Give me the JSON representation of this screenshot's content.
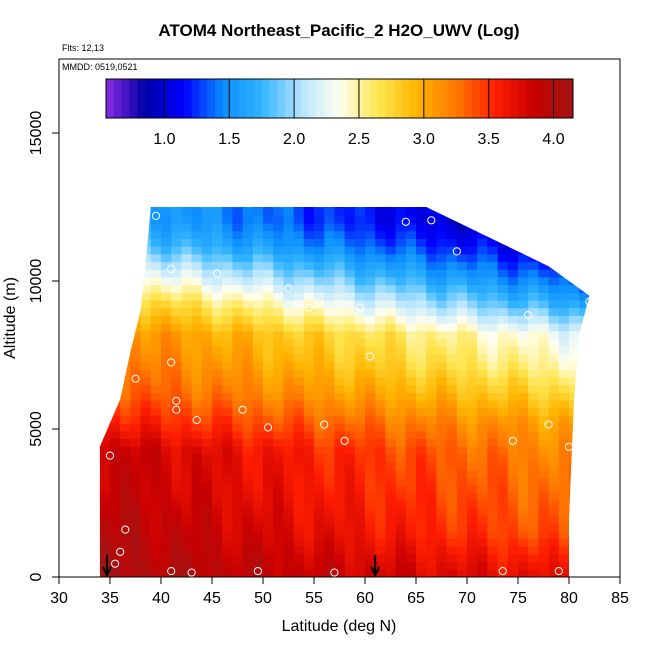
{
  "chart_data": {
    "type": "heatmap",
    "title": "ATOM4 Northeast_Pacific_2 H2O_UWV (Log)",
    "flights_label": "Flts: 12,13",
    "date_label": "MMDD: 0519,0521",
    "xlabel": "Latitude (deg N)",
    "ylabel": "Altitude (m)",
    "xlim": [
      30,
      85
    ],
    "ylim": [
      0,
      17500
    ],
    "x_ticks": [
      30,
      35,
      40,
      45,
      50,
      55,
      60,
      65,
      70,
      75,
      80,
      85
    ],
    "y_ticks": [
      0,
      5000,
      10000,
      15000
    ],
    "colorbar": {
      "range": [
        0.55,
        4.15
      ],
      "ticks": [
        1.0,
        1.5,
        2.0,
        2.5,
        3.0,
        3.5,
        4.0
      ],
      "tick_labels": [
        "1.0",
        "1.5",
        "2.0",
        "2.5",
        "3.0",
        "3.5",
        "4.0"
      ],
      "colors": [
        "#8a2be2",
        "#0000a8",
        "#0000ff",
        "#0a8cff",
        "#32b4ff",
        "#b4e4ff",
        "#fffff0",
        "#ffe650",
        "#ffb400",
        "#ff7800",
        "#ff1e00",
        "#c80000",
        "#a01414"
      ]
    },
    "columns": [
      {
        "lat": 34.0,
        "alt_top": 4400
      },
      {
        "lat": 36.0,
        "alt_top": 6000
      },
      {
        "lat": 37.0,
        "alt_top": 7600
      },
      {
        "lat": 38.0,
        "alt_top": 9000
      },
      {
        "lat": 38.5,
        "alt_top": 10600
      },
      {
        "lat": 39.0,
        "alt_top": 12500
      },
      {
        "lat": 66.0,
        "alt_top": 12500
      },
      {
        "lat": 69.0,
        "alt_top": 12000
      },
      {
        "lat": 72.0,
        "alt_top": 11500
      },
      {
        "lat": 75.0,
        "alt_top": 11000
      },
      {
        "lat": 78.0,
        "alt_top": 10500
      },
      {
        "lat": 80.0,
        "alt_top": 10000
      },
      {
        "lat": 82.0,
        "alt_top": 9500
      },
      {
        "lat": 81.0,
        "alt_top": 8200
      },
      {
        "lat": 80.5,
        "alt_top": 6000
      },
      {
        "lat": 80.0,
        "alt_top": 2000
      }
    ],
    "profile_alt": [
      12000,
      11200,
      10200,
      9200,
      8200,
      7200,
      6200,
      5200,
      4200,
      3000,
      1500,
      200
    ],
    "profile_value_south": [
      1.7,
      1.9,
      2.4,
      2.9,
      3.2,
      3.3,
      3.4,
      3.6,
      3.9,
      3.9,
      4.0,
      4.05
    ],
    "profile_value_north": [
      0.7,
      0.9,
      1.2,
      1.6,
      2.2,
      2.4,
      2.7,
      3.0,
      3.1,
      3.2,
      3.3,
      3.6
    ],
    "sample_points": [
      {
        "lat": 39.5,
        "alt": 12200
      },
      {
        "lat": 64.0,
        "alt": 12000
      },
      {
        "lat": 66.5,
        "alt": 12050
      },
      {
        "lat": 69.0,
        "alt": 11000
      },
      {
        "lat": 41.0,
        "alt": 10400
      },
      {
        "lat": 45.5,
        "alt": 10250
      },
      {
        "lat": 52.5,
        "alt": 9750
      },
      {
        "lat": 54.5,
        "alt": 9100
      },
      {
        "lat": 59.5,
        "alt": 9100
      },
      {
        "lat": 76.0,
        "alt": 8850
      },
      {
        "lat": 82.0,
        "alt": 9300
      },
      {
        "lat": 41.0,
        "alt": 7250
      },
      {
        "lat": 37.5,
        "alt": 6700
      },
      {
        "lat": 60.5,
        "alt": 7450
      },
      {
        "lat": 41.5,
        "alt": 5950
      },
      {
        "lat": 41.5,
        "alt": 5650
      },
      {
        "lat": 48.0,
        "alt": 5650
      },
      {
        "lat": 43.5,
        "alt": 5300
      },
      {
        "lat": 50.5,
        "alt": 5050
      },
      {
        "lat": 56.0,
        "alt": 5150
      },
      {
        "lat": 58.0,
        "alt": 4600
      },
      {
        "lat": 74.5,
        "alt": 4600
      },
      {
        "lat": 78.0,
        "alt": 5150
      },
      {
        "lat": 80.0,
        "alt": 4400
      },
      {
        "lat": 35.0,
        "alt": 4100
      },
      {
        "lat": 36.5,
        "alt": 1600
      },
      {
        "lat": 36.0,
        "alt": 850
      },
      {
        "lat": 35.5,
        "alt": 450
      },
      {
        "lat": 41.0,
        "alt": 200
      },
      {
        "lat": 43.0,
        "alt": 150
      },
      {
        "lat": 49.5,
        "alt": 200
      },
      {
        "lat": 57.0,
        "alt": 150
      },
      {
        "lat": 73.5,
        "alt": 200
      },
      {
        "lat": 79.0,
        "alt": 200
      }
    ],
    "arrows": [
      {
        "lat": 34.7,
        "alt": 0
      },
      {
        "lat": 61.0,
        "alt": 0
      }
    ]
  }
}
